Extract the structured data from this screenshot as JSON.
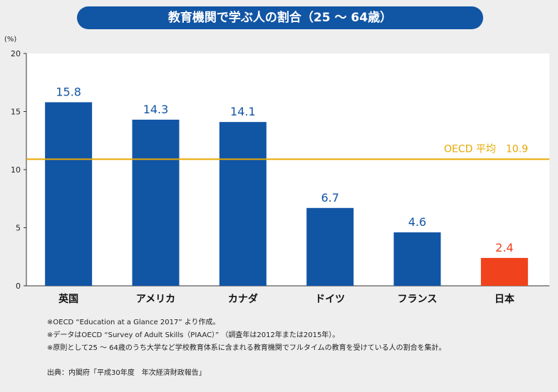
{
  "chart_data": {
    "type": "bar",
    "title": "教育機関で学ぶ人の割合（25 ～ 64歳）",
    "ylabel": "(%)",
    "ylim": [
      0,
      20
    ],
    "yticks": [
      "0",
      "5",
      "10",
      "15",
      "20"
    ],
    "categories": [
      "英国",
      "アメリカ",
      "カナダ",
      "ドイツ",
      "フランス",
      "日本"
    ],
    "values": [
      15.8,
      14.3,
      14.1,
      6.7,
      4.6,
      2.4
    ],
    "value_labels": [
      "15.8",
      "14.3",
      "14.1",
      "6.7",
      "4.6",
      "2.4"
    ],
    "reference_line": {
      "label": "OECD 平均　10.9",
      "value": 10.9
    },
    "colors": {
      "bar": "#1155a5",
      "highlight_bar": "#f0421c",
      "reference_line": "#e8a800",
      "value_label": "#1155a5",
      "highlight_label": "#f0421c",
      "reference_label": "#e8a800"
    },
    "highlight_index": 5,
    "grid": false
  },
  "notes": [
    "※OECD “Education at a Glance 2017” より作成。",
    "※データはOECD “Survey of Adult Skills（PIAAC）” （調査年は2012年または2015年）。",
    "※原則として25 ～ 64歳のうち大学など学校教育体系に含まれる教育機関でフルタイムの教育を受けている人の割合を集計。"
  ],
  "source": "出典：内閣府「平成30年度　年次経済財政報告」"
}
